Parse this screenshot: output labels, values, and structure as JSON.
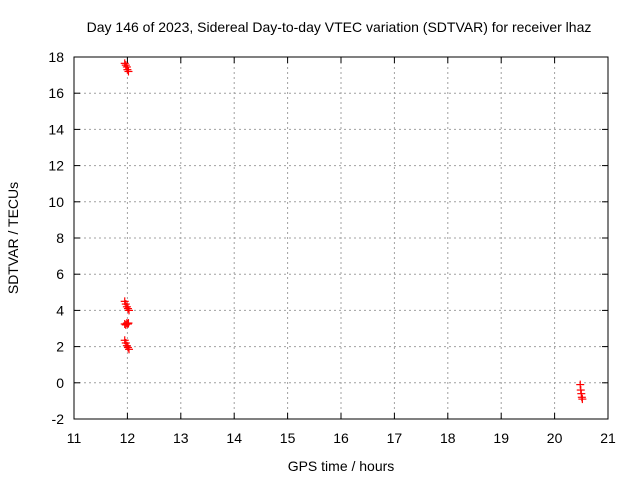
{
  "chart_data": {
    "type": "scatter",
    "title": "Day 146 of 2023, Sidereal Day-to-day VTEC variation (SDTVAR) for receiver lhaz",
    "xlabel": "GPS time / hours",
    "ylabel": "SDTVAR / TECUs",
    "xlim": [
      11,
      21
    ],
    "ylim": [
      -2,
      18
    ],
    "xticks": [
      11,
      12,
      13,
      14,
      15,
      16,
      17,
      18,
      19,
      20,
      21
    ],
    "yticks": [
      -2,
      0,
      2,
      4,
      6,
      8,
      10,
      12,
      14,
      16,
      18
    ],
    "grid": true,
    "marker": "+",
    "marker_color": "#ff0000",
    "series": [
      {
        "x": [
          11.95,
          11.97,
          11.99,
          12.0,
          12.02,
          11.95,
          11.97,
          11.99,
          12.01,
          12.03,
          11.95,
          11.97,
          11.99,
          12.01,
          12.02,
          11.95,
          11.97,
          11.99,
          12.01,
          12.03,
          20.48,
          20.49,
          20.5,
          20.51,
          20.52
        ],
        "y": [
          17.65,
          17.55,
          17.45,
          17.3,
          17.2,
          4.5,
          4.35,
          4.2,
          4.1,
          4.0,
          3.25,
          3.2,
          3.3,
          3.25,
          3.3,
          2.35,
          2.2,
          2.05,
          1.95,
          1.85,
          -0.1,
          -0.4,
          -0.6,
          -0.8,
          -0.9
        ]
      }
    ]
  }
}
